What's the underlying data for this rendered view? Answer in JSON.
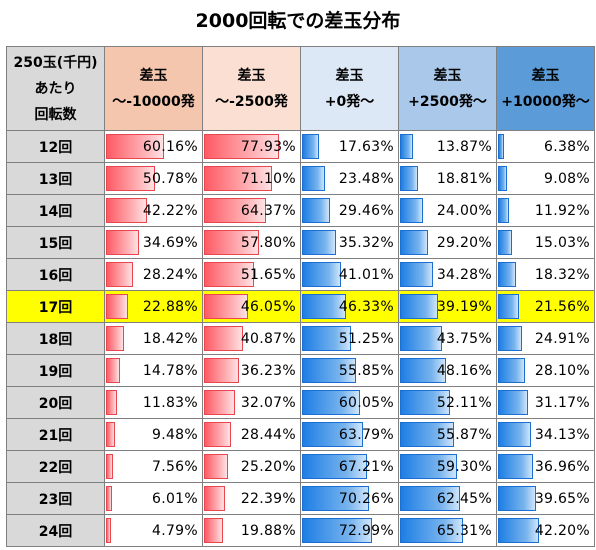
{
  "title": "2000回転での差玉分布",
  "header": {
    "row_label": "250玉(千円)\nあたり\n回転数",
    "columns": [
      {
        "label": "差玉\n〜-10000発",
        "bg": "#f4c6ae"
      },
      {
        "label": "差玉\n〜-2500発",
        "bg": "#fadfd2"
      },
      {
        "label": "差玉\n+0発〜",
        "bg": "#dde8f6"
      },
      {
        "label": "差玉\n+2500発〜",
        "bg": "#a9c8ea"
      },
      {
        "label": "差玉\n+10000発〜",
        "bg": "#5b9bd8"
      }
    ]
  },
  "highlight_color": "#ffff00",
  "highlight_row": "17回",
  "rows": [
    {
      "label": "12回",
      "values": [
        "60.16%",
        "77.93%",
        "17.63%",
        "13.87%",
        "6.38%"
      ]
    },
    {
      "label": "13回",
      "values": [
        "50.78%",
        "71.10%",
        "23.48%",
        "18.81%",
        "9.08%"
      ]
    },
    {
      "label": "14回",
      "values": [
        "42.22%",
        "64.37%",
        "29.46%",
        "24.00%",
        "11.92%"
      ]
    },
    {
      "label": "15回",
      "values": [
        "34.69%",
        "57.80%",
        "35.32%",
        "29.20%",
        "15.03%"
      ]
    },
    {
      "label": "16回",
      "values": [
        "28.24%",
        "51.65%",
        "41.01%",
        "34.28%",
        "18.32%"
      ]
    },
    {
      "label": "17回",
      "values": [
        "22.88%",
        "46.05%",
        "46.33%",
        "39.19%",
        "21.56%"
      ]
    },
    {
      "label": "18回",
      "values": [
        "18.42%",
        "40.87%",
        "51.25%",
        "43.75%",
        "24.91%"
      ]
    },
    {
      "label": "19回",
      "values": [
        "14.78%",
        "36.23%",
        "55.85%",
        "48.16%",
        "28.10%"
      ]
    },
    {
      "label": "20回",
      "values": [
        "11.83%",
        "32.07%",
        "60.05%",
        "52.11%",
        "31.17%"
      ]
    },
    {
      "label": "21回",
      "values": [
        "9.48%",
        "28.44%",
        "63.79%",
        "55.87%",
        "34.13%"
      ]
    },
    {
      "label": "22回",
      "values": [
        "7.56%",
        "25.20%",
        "67.21%",
        "59.30%",
        "36.96%"
      ]
    },
    {
      "label": "23回",
      "values": [
        "6.01%",
        "22.39%",
        "70.26%",
        "62.45%",
        "39.65%"
      ]
    },
    {
      "label": "24回",
      "values": [
        "4.79%",
        "19.88%",
        "72.99%",
        "65.31%",
        "42.20%"
      ]
    }
  ]
}
